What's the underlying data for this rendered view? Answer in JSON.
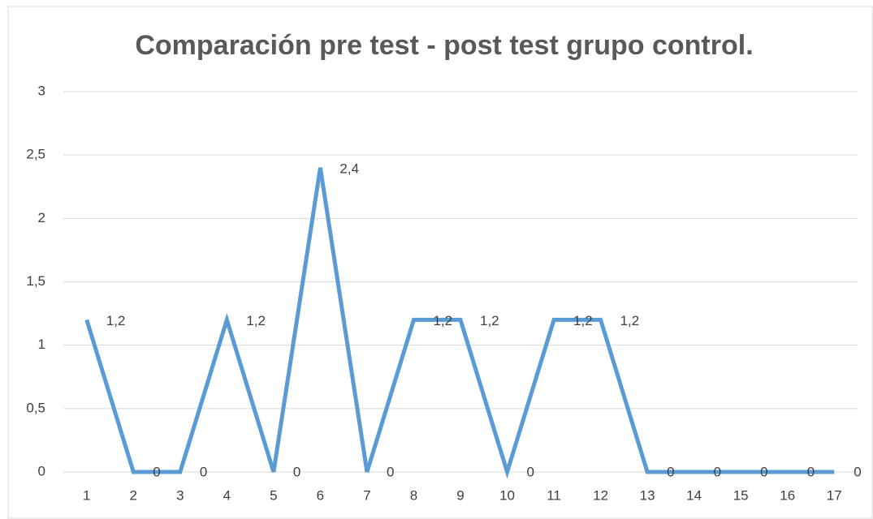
{
  "chart_data": {
    "type": "line",
    "title": "Comparación pre test - post test grupo control.",
    "categories": [
      "1",
      "2",
      "3",
      "4",
      "5",
      "6",
      "7",
      "8",
      "9",
      "10",
      "11",
      "12",
      "13",
      "14",
      "15",
      "16",
      "17"
    ],
    "series": [
      {
        "color": "#5b9bd5",
        "values": [
          1.2,
          0,
          0,
          1.2,
          0,
          2.4,
          0,
          1.2,
          1.2,
          0,
          1.2,
          1.2,
          0,
          0,
          0,
          0,
          0
        ],
        "value_labels": [
          "1,2",
          "0",
          "0",
          "1,2",
          "0",
          "2,4",
          "0",
          "1,2",
          "1,2",
          "0",
          "1,2",
          "1,2",
          "0",
          "0",
          "0",
          "0",
          "0"
        ]
      }
    ],
    "ylim": [
      0,
      3
    ],
    "yticks": [
      0,
      {
        "value": 0.5,
        "label": "0,5"
      },
      1,
      {
        "value": 1.5,
        "label": "1,5"
      },
      2,
      {
        "value": 2.5,
        "label": "2,5"
      },
      3
    ],
    "grid": true
  }
}
